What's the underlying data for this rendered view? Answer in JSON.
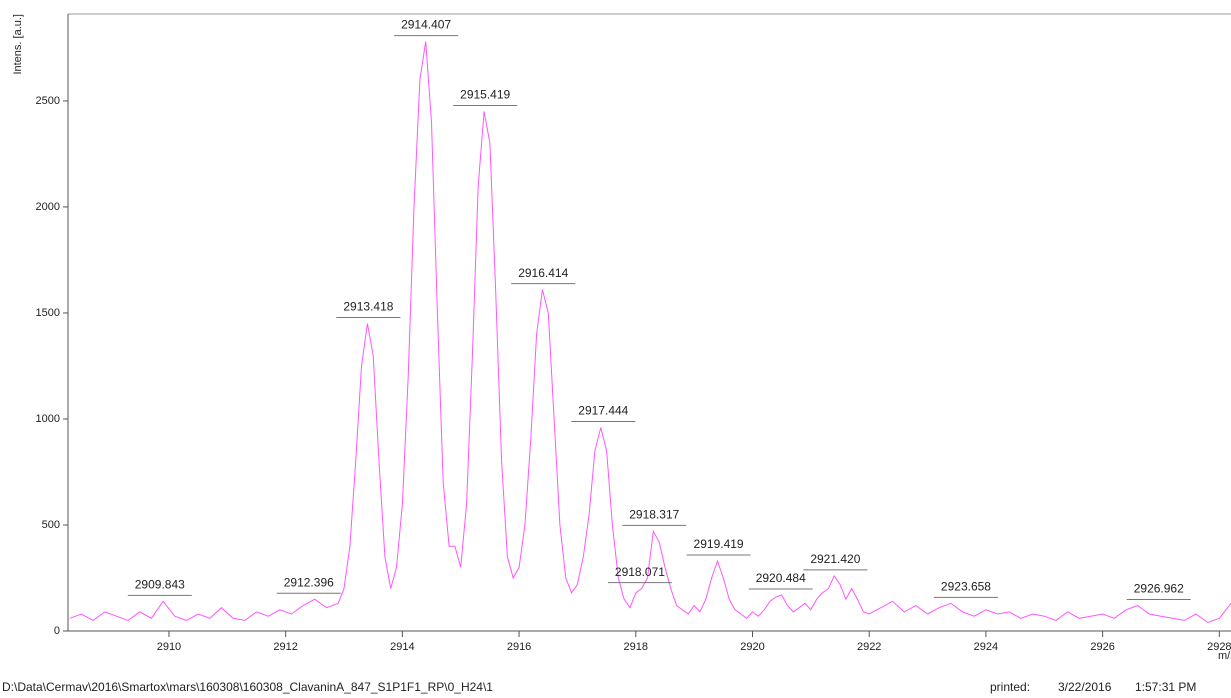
{
  "chart_data": {
    "type": "line",
    "y_label": "Intens. [a.u.]",
    "x_label": "m/z",
    "color": "#ff55ff",
    "xlim": [
      2908.27,
      2928.2
    ],
    "ylim": [
      0,
      2910
    ],
    "xticks": [
      2910,
      2912,
      2914,
      2916,
      2918,
      2920,
      2922,
      2924,
      2926,
      2928
    ],
    "yticks": [
      0,
      500,
      1000,
      1500,
      2000,
      2500
    ],
    "x": [
      2908.3,
      2908.5,
      2908.7,
      2908.9,
      2909.1,
      2909.3,
      2909.5,
      2909.7,
      2909.9,
      2910.1,
      2910.3,
      2910.5,
      2910.7,
      2910.9,
      2911.1,
      2911.3,
      2911.5,
      2911.7,
      2911.9,
      2912.1,
      2912.3,
      2912.5,
      2912.7,
      2912.9,
      2913.0,
      2913.1,
      2913.2,
      2913.3,
      2913.4,
      2913.5,
      2913.6,
      2913.7,
      2913.8,
      2913.9,
      2914.0,
      2914.1,
      2914.2,
      2914.3,
      2914.4,
      2914.5,
      2914.6,
      2914.7,
      2914.8,
      2914.9,
      2915.0,
      2915.1,
      2915.2,
      2915.3,
      2915.4,
      2915.5,
      2915.6,
      2915.7,
      2915.8,
      2915.9,
      2916.0,
      2916.1,
      2916.2,
      2916.3,
      2916.4,
      2916.5,
      2916.6,
      2916.7,
      2916.8,
      2916.9,
      2917.0,
      2917.1,
      2917.2,
      2917.3,
      2917.4,
      2917.5,
      2917.6,
      2917.7,
      2917.8,
      2917.9,
      2918.0,
      2918.1,
      2918.2,
      2918.3,
      2918.4,
      2918.5,
      2918.6,
      2918.7,
      2918.8,
      2918.9,
      2919.0,
      2919.1,
      2919.2,
      2919.3,
      2919.4,
      2919.5,
      2919.6,
      2919.7,
      2919.8,
      2919.9,
      2920.0,
      2920.1,
      2920.2,
      2920.3,
      2920.4,
      2920.5,
      2920.6,
      2920.7,
      2920.8,
      2920.9,
      2921.0,
      2921.1,
      2921.2,
      2921.3,
      2921.4,
      2921.5,
      2921.6,
      2921.7,
      2921.8,
      2921.9,
      2922.0,
      2922.2,
      2922.4,
      2922.6,
      2922.8,
      2923.0,
      2923.2,
      2923.4,
      2923.6,
      2923.8,
      2924.0,
      2924.2,
      2924.4,
      2924.6,
      2924.8,
      2925.0,
      2925.2,
      2925.4,
      2925.6,
      2925.8,
      2926.0,
      2926.2,
      2926.4,
      2926.6,
      2926.8,
      2927.0,
      2927.2,
      2927.4,
      2927.6,
      2927.8,
      2928.0,
      2928.2
    ],
    "values": [
      60,
      80,
      50,
      90,
      70,
      50,
      90,
      60,
      140,
      70,
      50,
      80,
      60,
      110,
      60,
      50,
      90,
      70,
      100,
      80,
      120,
      150,
      110,
      130,
      200,
      400,
      800,
      1250,
      1450,
      1300,
      800,
      350,
      200,
      300,
      600,
      1200,
      2000,
      2600,
      2780,
      2400,
      1500,
      700,
      400,
      400,
      300,
      600,
      1300,
      2100,
      2450,
      2300,
      1600,
      800,
      350,
      250,
      300,
      500,
      900,
      1400,
      1610,
      1500,
      1000,
      500,
      250,
      180,
      220,
      350,
      550,
      850,
      960,
      850,
      500,
      250,
      150,
      110,
      180,
      200,
      250,
      470,
      420,
      300,
      200,
      120,
      100,
      80,
      120,
      90,
      150,
      250,
      330,
      250,
      150,
      100,
      80,
      60,
      90,
      70,
      100,
      140,
      160,
      170,
      120,
      90,
      110,
      130,
      100,
      150,
      180,
      200,
      260,
      220,
      150,
      200,
      150,
      90,
      80,
      110,
      140,
      90,
      120,
      80,
      110,
      130,
      90,
      70,
      100,
      80,
      90,
      60,
      80,
      70,
      50,
      90,
      60,
      70,
      80,
      60,
      100,
      120,
      80,
      70,
      60,
      50,
      80,
      40,
      60,
      130
    ],
    "peaks": {
      "x": [
        2909.843,
        2912.396,
        2913.418,
        2914.407,
        2915.419,
        2916.414,
        2917.444,
        2918.071,
        2918.317,
        2919.419,
        2920.484,
        2921.42,
        2923.658,
        2926.962
      ],
      "values": [
        140,
        150,
        1450,
        2780,
        2450,
        1610,
        960,
        200,
        470,
        330,
        170,
        260,
        130,
        120
      ],
      "value_labels": [
        "2909.843",
        "2912.396",
        "2913.418",
        "2914.407",
        "2915.419",
        "2916.414",
        "2917.444",
        "2918.071",
        "2918.317",
        "2919.419",
        "2920.484",
        "2921.420",
        "2923.658",
        "2926.962"
      ]
    }
  },
  "footer": {
    "path": "D:\\Data\\Cermav\\2016\\Smartox\\mars\\160308\\160308_ClavaninA_847_S1P1F1_RP\\0_H24\\1",
    "printed_label": "printed:",
    "date": "3/22/2016",
    "time": "1:57:31 PM"
  }
}
